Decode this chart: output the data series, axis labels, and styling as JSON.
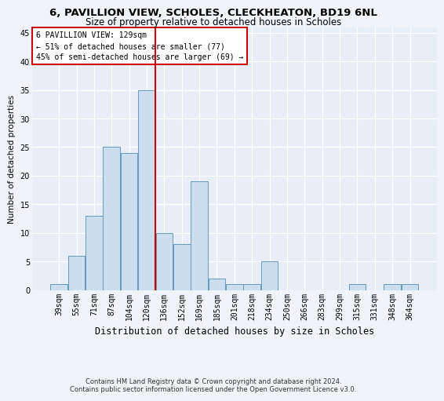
{
  "title1": "6, PAVILLION VIEW, SCHOLES, CLECKHEATON, BD19 6NL",
  "title2": "Size of property relative to detached houses in Scholes",
  "xlabel": "Distribution of detached houses by size in Scholes",
  "ylabel": "Number of detached properties",
  "categories": [
    "39sqm",
    "55sqm",
    "71sqm",
    "87sqm",
    "104sqm",
    "120sqm",
    "136sqm",
    "152sqm",
    "169sqm",
    "185sqm",
    "201sqm",
    "218sqm",
    "234sqm",
    "250sqm",
    "266sqm",
    "283sqm",
    "299sqm",
    "315sqm",
    "331sqm",
    "348sqm",
    "364sqm"
  ],
  "values": [
    1,
    6,
    13,
    25,
    24,
    35,
    10,
    8,
    19,
    2,
    1,
    1,
    5,
    0,
    0,
    0,
    0,
    1,
    0,
    1,
    1
  ],
  "bar_color": "#ccdded",
  "bar_edge_color": "#6699bb",
  "background_color": "#e8eef8",
  "grid_color": "#ffffff",
  "fig_bg_color": "#f0f4fa",
  "ref_line_x": 5.5,
  "ref_line_color": "#cc0000",
  "annotation_text": "6 PAVILLION VIEW: 129sqm\n← 51% of detached houses are smaller (77)\n45% of semi-detached houses are larger (69) →",
  "annotation_box_color": "#cc0000",
  "footer1": "Contains HM Land Registry data © Crown copyright and database right 2024.",
  "footer2": "Contains public sector information licensed under the Open Government Licence v3.0.",
  "ylim": [
    0,
    46
  ],
  "yticks": [
    0,
    5,
    10,
    15,
    20,
    25,
    30,
    35,
    40,
    45
  ],
  "title1_fontsize": 9.5,
  "title2_fontsize": 8.5,
  "xlabel_fontsize": 8.5,
  "ylabel_fontsize": 7.5,
  "tick_fontsize": 7,
  "footer_fontsize": 6.0
}
